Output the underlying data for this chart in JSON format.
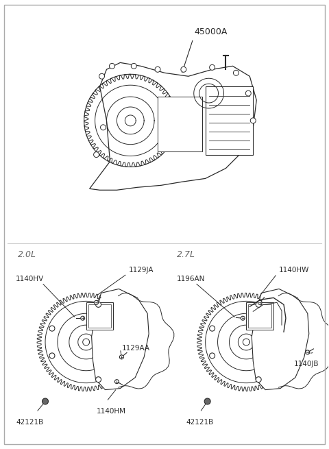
{
  "bg_color": "#ffffff",
  "fig_width": 4.8,
  "fig_height": 6.55,
  "dpi": 100,
  "title_label": "45000A",
  "label_20L": "2.0L",
  "label_27L": "2.7L",
  "line_color": "#2a2a2a",
  "text_color": "#2a2a2a",
  "part_label_fontsize": 7.5,
  "section_label_fontsize": 9
}
